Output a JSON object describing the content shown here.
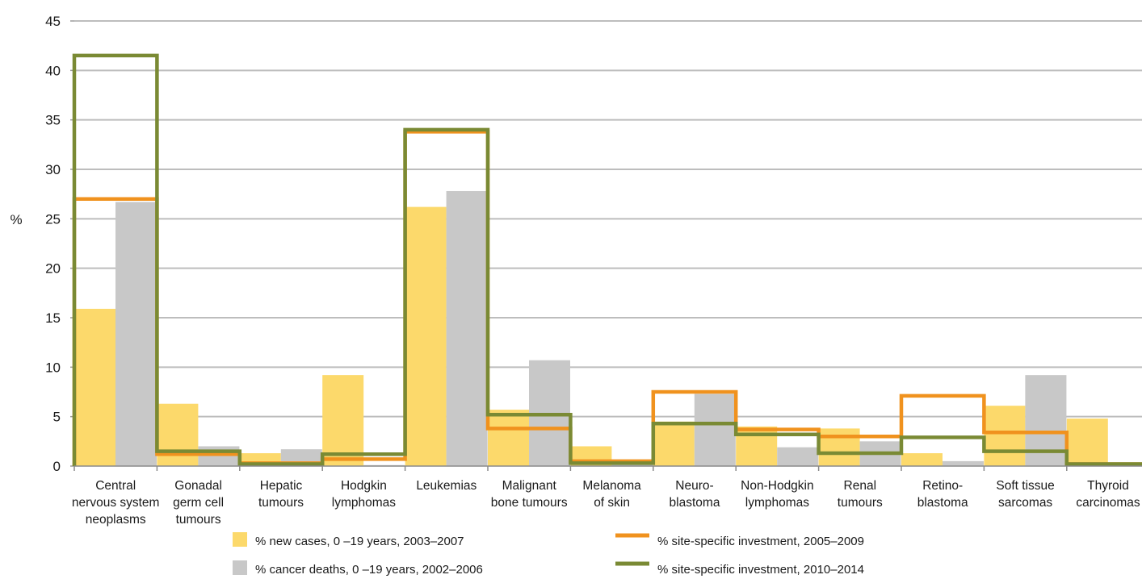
{
  "chart_data": {
    "type": "bar",
    "title": "",
    "xlabel": "",
    "ylabel": "%",
    "ylim": [
      0,
      45
    ],
    "yticks": [
      0,
      5,
      10,
      15,
      20,
      25,
      30,
      35,
      40,
      45
    ],
    "grid": true,
    "legend_position": "bottom",
    "categories": [
      [
        "Central",
        "nervous system",
        "neoplasms"
      ],
      [
        "Gonadal",
        "germ cell",
        "tumours"
      ],
      [
        "Hepatic",
        "tumours"
      ],
      [
        "Hodgkin",
        "lymphomas"
      ],
      [
        "Leukemias"
      ],
      [
        "Malignant",
        "bone tumours"
      ],
      [
        "Melanoma",
        "of skin"
      ],
      [
        "Neuro-",
        "blastoma"
      ],
      [
        "Non-Hodgkin",
        "lymphomas"
      ],
      [
        "Renal",
        "tumours"
      ],
      [
        "Retino-",
        "blastoma"
      ],
      [
        "Soft tissue",
        "sarcomas"
      ],
      [
        "Thyroid",
        "carcinomas"
      ]
    ],
    "series": [
      {
        "name": "% new cases, 0 –19 years, 2003–2007",
        "kind": "bar",
        "color": "#fcd96b",
        "values": [
          15.9,
          6.3,
          1.3,
          9.2,
          26.2,
          5.7,
          2.0,
          4.5,
          4.0,
          3.8,
          1.3,
          6.1,
          4.8
        ]
      },
      {
        "name": "% cancer deaths, 0 –19 years, 2002–2006",
        "kind": "bar",
        "color": "#c8c8c8",
        "values": [
          26.7,
          2.0,
          1.7,
          0.1,
          27.8,
          10.7,
          0.4,
          7.3,
          1.9,
          2.5,
          0.5,
          9.2,
          0.2
        ]
      },
      {
        "name": "% site-specific investment, 2005–2009",
        "kind": "step",
        "color": "#f0921e",
        "values": [
          27.0,
          1.2,
          0.3,
          0.7,
          33.8,
          3.8,
          0.5,
          7.5,
          3.7,
          3.0,
          7.1,
          3.4,
          0.2
        ]
      },
      {
        "name": "% site-specific investment, 2010–2014",
        "kind": "step",
        "color": "#7a8a34",
        "values": [
          41.5,
          1.5,
          0.2,
          1.2,
          34.0,
          5.2,
          0.3,
          4.3,
          3.2,
          1.3,
          2.9,
          1.5,
          0.2
        ]
      }
    ]
  }
}
